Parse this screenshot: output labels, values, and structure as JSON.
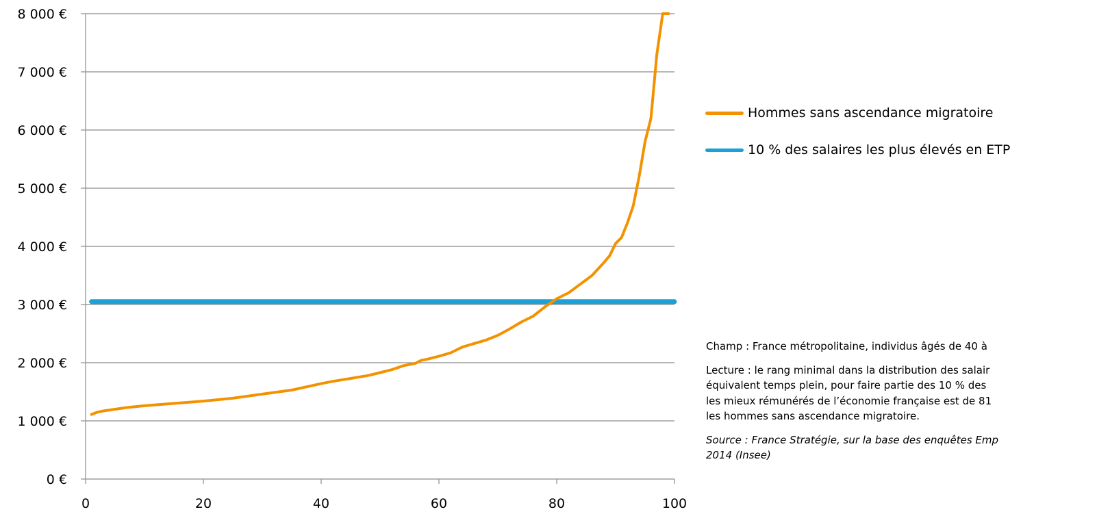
{
  "chart_data": {
    "type": "line",
    "title": "",
    "xlabel": "",
    "ylabel": "",
    "xlim": [
      0,
      100
    ],
    "ylim": [
      0,
      8000
    ],
    "x_ticks": [
      "0",
      "20",
      "40",
      "60",
      "80",
      "100"
    ],
    "y_ticks": [
      "0 €",
      "1 000 €",
      "2 000 €",
      "3 000 €",
      "4 000 €",
      "5 000 €",
      "6 000 €",
      "7 000 €",
      "8 000 €"
    ],
    "grid": "horizontal",
    "legend_position": "right",
    "series": [
      {
        "name": "Hommes sans ascendance migratoire",
        "color": "#f39200",
        "x": [
          1,
          2,
          3,
          5,
          7,
          10,
          15,
          20,
          25,
          30,
          35,
          40,
          42,
          45,
          48,
          50,
          52,
          54,
          56,
          57,
          58,
          60,
          62,
          64,
          65,
          66,
          68,
          70,
          72,
          74,
          76,
          78,
          80,
          82,
          84,
          86,
          88,
          89,
          90,
          91,
          92,
          93,
          94,
          95,
          96,
          97,
          98,
          99
        ],
        "y": [
          1110,
          1150,
          1170,
          1200,
          1230,
          1260,
          1300,
          1340,
          1390,
          1460,
          1530,
          1640,
          1680,
          1730,
          1780,
          1830,
          1880,
          1950,
          1990,
          2040,
          2060,
          2110,
          2170,
          2270,
          2300,
          2330,
          2390,
          2470,
          2580,
          2700,
          2800,
          2960,
          3100,
          3200,
          3350,
          3500,
          3720,
          3840,
          4050,
          4150,
          4400,
          4700,
          5200,
          5800,
          6200,
          7300,
          8000,
          8000
        ]
      },
      {
        "name": "10 % des salaires les plus élevés en ETP",
        "color": "#1ba0d8",
        "x": [
          1,
          100
        ],
        "y": [
          3050,
          3050
        ]
      }
    ]
  },
  "notes": {
    "champ": "Champ : France métropolitaine, individus âgés de 40 à",
    "lecture": "Lecture : le rang minimal dans la distribution des salair\néquivalent temps plein, pour faire partie des 10 % des\nles mieux rémunérés de l’économie française est de 81\nles hommes sans ascendance migratoire.",
    "source": "Source : France Stratégie, sur la base des enquêtes Emp\n2014 (Insee)"
  }
}
